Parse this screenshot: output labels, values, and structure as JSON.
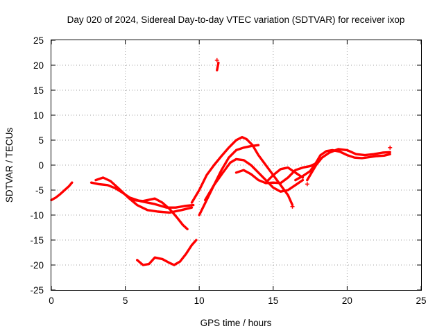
{
  "chart_data": {
    "type": "scatter",
    "title": "Day 020 of 2024, Sidereal Day-to-day VTEC variation (SDTVAR) for receiver ixop",
    "xlabel": "GPS time / hours",
    "ylabel": "SDTVAR / TECUs",
    "xlim": [
      0,
      25
    ],
    "ylim": [
      -25,
      25
    ],
    "xticks": [
      0,
      5,
      10,
      15,
      20,
      25
    ],
    "yticks": [
      -25,
      -20,
      -15,
      -10,
      -5,
      0,
      5,
      10,
      15,
      20,
      25
    ],
    "xtick_labels": [
      "0",
      "5",
      "10",
      "15",
      "20",
      "25"
    ],
    "ytick_labels": [
      "-25",
      "-20",
      "-15",
      "-10",
      "-5",
      "0",
      "5",
      "10",
      "15",
      "20",
      "25"
    ],
    "grid": true,
    "marker_color": "#ff0000",
    "series": [
      {
        "name": "track-1",
        "points": [
          [
            0,
            -7
          ],
          [
            0.3,
            -6.5
          ],
          [
            0.6,
            -5.8
          ],
          [
            0.9,
            -5
          ],
          [
            1.2,
            -4.2
          ],
          [
            1.4,
            -3.5
          ]
        ]
      },
      {
        "name": "track-2",
        "points": [
          [
            2.7,
            -3.5
          ],
          [
            3.2,
            -3.8
          ],
          [
            3.8,
            -4
          ],
          [
            4.3,
            -4.6
          ],
          [
            4.8,
            -5.5
          ],
          [
            5.3,
            -6.5
          ],
          [
            6,
            -7.2
          ],
          [
            7,
            -7.8
          ],
          [
            7.8,
            -8.5
          ],
          [
            8.4,
            -8.5
          ],
          [
            9,
            -8.2
          ],
          [
            9.6,
            -8
          ]
        ]
      },
      {
        "name": "track-3",
        "points": [
          [
            3,
            -3
          ],
          [
            3.5,
            -2.5
          ],
          [
            4,
            -3.2
          ],
          [
            4.6,
            -4.8
          ],
          [
            5.2,
            -6.5
          ],
          [
            5.8,
            -8
          ],
          [
            6.5,
            -9
          ],
          [
            7.2,
            -9.3
          ],
          [
            8,
            -9.5
          ],
          [
            8.8,
            -9
          ],
          [
            9.5,
            -8.5
          ]
        ]
      },
      {
        "name": "track-4",
        "points": [
          [
            5.5,
            -7
          ],
          [
            6.2,
            -7.2
          ],
          [
            7,
            -6.7
          ],
          [
            7.5,
            -7.5
          ],
          [
            8,
            -8.8
          ],
          [
            8.5,
            -10.5
          ],
          [
            8.9,
            -12
          ],
          [
            9.2,
            -12.8
          ]
        ]
      },
      {
        "name": "track-5",
        "points": [
          [
            9.5,
            -7.5
          ],
          [
            10,
            -5
          ],
          [
            10.5,
            -2
          ],
          [
            11,
            0
          ],
          [
            11.5,
            1.8
          ],
          [
            12,
            3.5
          ],
          [
            12.5,
            5
          ],
          [
            12.9,
            5.6
          ],
          [
            13.2,
            5.2
          ],
          [
            13.6,
            4
          ],
          [
            14,
            2
          ],
          [
            14.5,
            0
          ],
          [
            15,
            -2
          ],
          [
            15.5,
            -4
          ],
          [
            16,
            -6
          ],
          [
            16.3,
            -8
          ]
        ]
      },
      {
        "name": "track-6",
        "points": [
          [
            10,
            -10
          ],
          [
            10.5,
            -7
          ],
          [
            11,
            -4
          ],
          [
            11.5,
            -1
          ],
          [
            12,
            1.5
          ],
          [
            12.5,
            3
          ],
          [
            13,
            3.5
          ],
          [
            13.5,
            3.8
          ],
          [
            14,
            4
          ]
        ]
      },
      {
        "name": "track-7",
        "points": [
          [
            10.4,
            -7
          ],
          [
            11,
            -4
          ],
          [
            11.6,
            -1.5
          ],
          [
            12.1,
            0.5
          ],
          [
            12.5,
            1.2
          ],
          [
            13,
            1
          ],
          [
            13.5,
            0
          ],
          [
            14,
            -1.5
          ],
          [
            14.5,
            -3
          ],
          [
            15,
            -4.5
          ],
          [
            15.5,
            -5.3
          ],
          [
            16,
            -5
          ],
          [
            16.5,
            -4
          ],
          [
            17,
            -3
          ]
        ]
      },
      {
        "name": "track-8",
        "points": [
          [
            12.5,
            -1.5
          ],
          [
            13,
            -1
          ],
          [
            13.5,
            -1.8
          ],
          [
            14,
            -3
          ],
          [
            14.5,
            -3.6
          ],
          [
            15,
            -3.5
          ],
          [
            15.5,
            -3.6
          ],
          [
            16,
            -2.5
          ],
          [
            16.5,
            -1
          ],
          [
            17,
            -0.5
          ],
          [
            17.5,
            -0.2
          ],
          [
            18,
            0.5
          ]
        ]
      },
      {
        "name": "track-9",
        "points": [
          [
            14.5,
            -3.5
          ],
          [
            15,
            -2
          ],
          [
            15.5,
            -0.8
          ],
          [
            16,
            -0.5
          ],
          [
            16.5,
            -1.5
          ],
          [
            17,
            -2.5
          ]
        ]
      },
      {
        "name": "track-10",
        "points": [
          [
            16.5,
            -3
          ],
          [
            17,
            -2.2
          ],
          [
            17.5,
            -1.2
          ],
          [
            17.9,
            0.5
          ],
          [
            18.2,
            2
          ],
          [
            18.6,
            2.8
          ],
          [
            19,
            3
          ],
          [
            19.5,
            2.7
          ],
          [
            20,
            2
          ],
          [
            20.5,
            1.5
          ],
          [
            21,
            1.4
          ],
          [
            21.5,
            1.6
          ],
          [
            22,
            1.8
          ],
          [
            22.5,
            1.9
          ],
          [
            22.9,
            2.2
          ]
        ]
      },
      {
        "name": "track-11",
        "points": [
          [
            17.3,
            -3
          ],
          [
            17.6,
            -1.5
          ],
          [
            17.9,
            0
          ],
          [
            18.3,
            1.5
          ],
          [
            18.8,
            2.5
          ],
          [
            19.4,
            3.2
          ],
          [
            20,
            3
          ],
          [
            20.6,
            2.2
          ],
          [
            21.2,
            2
          ],
          [
            21.8,
            2.2
          ],
          [
            22.4,
            2.5
          ],
          [
            22.9,
            2.6
          ]
        ]
      },
      {
        "name": "track-12",
        "points": [
          [
            5.8,
            -19
          ],
          [
            6.2,
            -20
          ],
          [
            6.6,
            -19.8
          ],
          [
            7,
            -18.5
          ],
          [
            7.5,
            -18.8
          ],
          [
            8,
            -19.6
          ],
          [
            8.3,
            -20
          ],
          [
            8.7,
            -19.3
          ],
          [
            9.1,
            -17.8
          ],
          [
            9.5,
            -16
          ],
          [
            9.8,
            -15
          ]
        ]
      },
      {
        "name": "track-13",
        "points": [
          [
            11.2,
            19
          ],
          [
            11.3,
            20.5
          ]
        ]
      }
    ],
    "outliers": [
      [
        11.2,
        21
      ],
      [
        22.9,
        3.5
      ],
      [
        16.3,
        -8.3
      ],
      [
        17.3,
        -3.8
      ]
    ]
  }
}
